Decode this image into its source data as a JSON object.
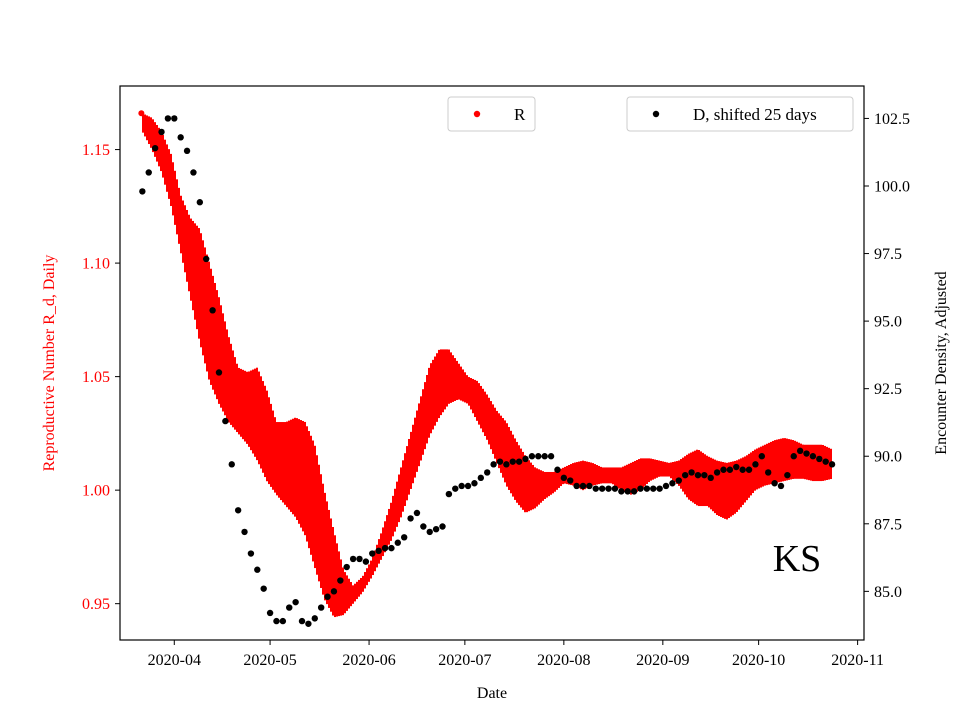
{
  "chart_data": {
    "type": "scatter",
    "annotation": "KS",
    "xlabel": "Date",
    "ylabel_left": "Reproductive Number R_d, Daily",
    "ylabel_right": "Encounter Density, Adjusted",
    "x_range": [
      "2020-03-15",
      "2020-11-03"
    ],
    "ylim_left": [
      0.934,
      1.178
    ],
    "ylim_right": [
      83.2,
      103.7
    ],
    "x_ticks": [
      "2020-04-01",
      "2020-05-01",
      "2020-06-01",
      "2020-07-01",
      "2020-08-01",
      "2020-09-01",
      "2020-10-01",
      "2020-11-01"
    ],
    "x_tick_labels": [
      "2020-04",
      "2020-05",
      "2020-06",
      "2020-07",
      "2020-08",
      "2020-09",
      "2020-10",
      "2020-11"
    ],
    "y_ticks_left": [
      0.95,
      1.0,
      1.05,
      1.1,
      1.15
    ],
    "y_tick_labels_left": [
      "0.95",
      "1.00",
      "1.05",
      "1.10",
      "1.15"
    ],
    "y_ticks_right": [
      85.0,
      87.5,
      90.0,
      92.5,
      95.0,
      97.5,
      100.0,
      102.5
    ],
    "y_tick_labels_right": [
      "85.0",
      "87.5",
      "90.0",
      "92.5",
      "95.0",
      "97.5",
      "100.0",
      "102.5"
    ],
    "grid": false,
    "colors": {
      "R": "#ff0000",
      "D": "#000000",
      "left_axis_text": "#ff0000",
      "right_axis_text": "#000000"
    },
    "legends": [
      {
        "label": "R",
        "placement": "top-center",
        "color": "#ff0000"
      },
      {
        "label": "D, shifted 25 days",
        "placement": "top-right",
        "color": "#000000"
      }
    ],
    "series": [
      {
        "name": "R",
        "axis": "left",
        "style": "band",
        "x": [
          "2020-03-22",
          "2020-03-25",
          "2020-03-28",
          "2020-03-31",
          "2020-04-03",
          "2020-04-06",
          "2020-04-09",
          "2020-04-12",
          "2020-04-15",
          "2020-04-18",
          "2020-04-21",
          "2020-04-24",
          "2020-04-27",
          "2020-04-30",
          "2020-05-03",
          "2020-05-06",
          "2020-05-09",
          "2020-05-12",
          "2020-05-15",
          "2020-05-18",
          "2020-05-21",
          "2020-05-24",
          "2020-05-27",
          "2020-05-30",
          "2020-06-02",
          "2020-06-05",
          "2020-06-08",
          "2020-06-11",
          "2020-06-14",
          "2020-06-17",
          "2020-06-20",
          "2020-06-23",
          "2020-06-26",
          "2020-06-29",
          "2020-07-02",
          "2020-07-05",
          "2020-07-08",
          "2020-07-11",
          "2020-07-14",
          "2020-07-17",
          "2020-07-20",
          "2020-07-23",
          "2020-07-26",
          "2020-07-29",
          "2020-08-01",
          "2020-08-04",
          "2020-08-07",
          "2020-08-10",
          "2020-08-13",
          "2020-08-16",
          "2020-08-19",
          "2020-08-22",
          "2020-08-25",
          "2020-08-28",
          "2020-08-31",
          "2020-09-03",
          "2020-09-06",
          "2020-09-09",
          "2020-09-12",
          "2020-09-15",
          "2020-09-18",
          "2020-09-21",
          "2020-09-24",
          "2020-09-27",
          "2020-09-30",
          "2020-10-03",
          "2020-10-06",
          "2020-10-09",
          "2020-10-12",
          "2020-10-15",
          "2020-10-18",
          "2020-10-21",
          "2020-10-24"
        ],
        "low": [
          1.158,
          1.15,
          1.14,
          1.125,
          1.105,
          1.085,
          1.065,
          1.048,
          1.038,
          1.03,
          1.025,
          1.02,
          1.013,
          1.004,
          0.998,
          0.993,
          0.988,
          0.98,
          0.966,
          0.952,
          0.944,
          0.945,
          0.95,
          0.955,
          0.962,
          0.97,
          0.978,
          0.988,
          1.0,
          1.012,
          1.024,
          1.032,
          1.038,
          1.04,
          1.038,
          1.03,
          1.022,
          1.012,
          1.002,
          0.995,
          0.99,
          0.992,
          0.996,
          0.999,
          1.003,
          1.002,
          1.0,
          1.002,
          1.003,
          1.003,
          1.0,
          0.998,
          1.0,
          1.004,
          1.006,
          1.006,
          1.002,
          0.996,
          0.993,
          0.993,
          0.989,
          0.987,
          0.99,
          0.995,
          1.0,
          1.002,
          1.003,
          1.004,
          1.005,
          1.005,
          1.004,
          1.004,
          1.005
        ],
        "high": [
          1.166,
          1.164,
          1.158,
          1.148,
          1.13,
          1.12,
          1.115,
          1.1,
          1.085,
          1.068,
          1.054,
          1.052,
          1.054,
          1.044,
          1.03,
          1.03,
          1.032,
          1.03,
          1.02,
          1.0,
          0.982,
          0.965,
          0.958,
          0.962,
          0.97,
          0.982,
          0.995,
          1.01,
          1.025,
          1.04,
          1.055,
          1.062,
          1.062,
          1.056,
          1.05,
          1.048,
          1.042,
          1.035,
          1.03,
          1.022,
          1.015,
          1.01,
          1.008,
          1.008,
          1.01,
          1.012,
          1.013,
          1.012,
          1.01,
          1.01,
          1.01,
          1.012,
          1.014,
          1.014,
          1.013,
          1.012,
          1.013,
          1.016,
          1.018,
          1.015,
          1.013,
          1.012,
          1.013,
          1.015,
          1.018,
          1.02,
          1.022,
          1.023,
          1.022,
          1.02,
          1.02,
          1.02,
          1.018
        ]
      },
      {
        "name": "D, shifted 25 days",
        "axis": "right",
        "style": "dots",
        "x": [
          "2020-03-22",
          "2020-03-24",
          "2020-03-26",
          "2020-03-28",
          "2020-03-30",
          "2020-04-01",
          "2020-04-03",
          "2020-04-05",
          "2020-04-07",
          "2020-04-09",
          "2020-04-11",
          "2020-04-13",
          "2020-04-15",
          "2020-04-17",
          "2020-04-19",
          "2020-04-21",
          "2020-04-23",
          "2020-04-25",
          "2020-04-27",
          "2020-04-29",
          "2020-05-01",
          "2020-05-03",
          "2020-05-05",
          "2020-05-07",
          "2020-05-09",
          "2020-05-11",
          "2020-05-13",
          "2020-05-15",
          "2020-05-17",
          "2020-05-19",
          "2020-05-21",
          "2020-05-23",
          "2020-05-25",
          "2020-05-27",
          "2020-05-29",
          "2020-05-31",
          "2020-06-02",
          "2020-06-04",
          "2020-06-06",
          "2020-06-08",
          "2020-06-10",
          "2020-06-12",
          "2020-06-14",
          "2020-06-16",
          "2020-06-18",
          "2020-06-20",
          "2020-06-22",
          "2020-06-24",
          "2020-06-26",
          "2020-06-28",
          "2020-06-30",
          "2020-07-02",
          "2020-07-04",
          "2020-07-06",
          "2020-07-08",
          "2020-07-10",
          "2020-07-12",
          "2020-07-14",
          "2020-07-16",
          "2020-07-18",
          "2020-07-20",
          "2020-07-22",
          "2020-07-24",
          "2020-07-26",
          "2020-07-28",
          "2020-07-30",
          "2020-08-01",
          "2020-08-03",
          "2020-08-05",
          "2020-08-07",
          "2020-08-09",
          "2020-08-11",
          "2020-08-13",
          "2020-08-15",
          "2020-08-17",
          "2020-08-19",
          "2020-08-21",
          "2020-08-23",
          "2020-08-25",
          "2020-08-27",
          "2020-08-29",
          "2020-08-31",
          "2020-09-02",
          "2020-09-04",
          "2020-09-06",
          "2020-09-08",
          "2020-09-10",
          "2020-09-12",
          "2020-09-14",
          "2020-09-16",
          "2020-09-18",
          "2020-09-20",
          "2020-09-22",
          "2020-09-24",
          "2020-09-26",
          "2020-09-28",
          "2020-09-30",
          "2020-10-02",
          "2020-10-04",
          "2020-10-06",
          "2020-10-08",
          "2020-10-10",
          "2020-10-12",
          "2020-10-14",
          "2020-10-16",
          "2020-10-18",
          "2020-10-20",
          "2020-10-22",
          "2020-10-24"
        ],
        "values": [
          99.8,
          100.5,
          101.4,
          102.0,
          102.5,
          102.5,
          101.8,
          101.3,
          100.5,
          99.4,
          97.3,
          95.4,
          93.1,
          91.3,
          89.7,
          88.0,
          87.2,
          86.4,
          85.8,
          85.1,
          84.2,
          83.9,
          83.9,
          84.4,
          84.6,
          83.9,
          83.8,
          84.0,
          84.4,
          84.8,
          85.0,
          85.4,
          85.9,
          86.2,
          86.2,
          86.1,
          86.4,
          86.5,
          86.6,
          86.6,
          86.8,
          87.0,
          87.7,
          87.9,
          87.4,
          87.2,
          87.3,
          87.4,
          88.6,
          88.8,
          88.9,
          88.9,
          89.0,
          89.2,
          89.4,
          89.7,
          89.8,
          89.7,
          89.8,
          89.8,
          89.9,
          90.0,
          90.0,
          90.0,
          90.0,
          89.5,
          89.2,
          89.1,
          88.9,
          88.9,
          88.9,
          88.8,
          88.8,
          88.8,
          88.8,
          88.7,
          88.7,
          88.7,
          88.8,
          88.8,
          88.8,
          88.8,
          88.9,
          89.0,
          89.1,
          89.3,
          89.4,
          89.3,
          89.3,
          89.2,
          89.4,
          89.5,
          89.5,
          89.6,
          89.5,
          89.5,
          89.7,
          90.0,
          89.4,
          89.0,
          88.9,
          89.3,
          90.0,
          90.2,
          90.1,
          90.0,
          89.9,
          89.8,
          89.7
        ]
      }
    ]
  }
}
